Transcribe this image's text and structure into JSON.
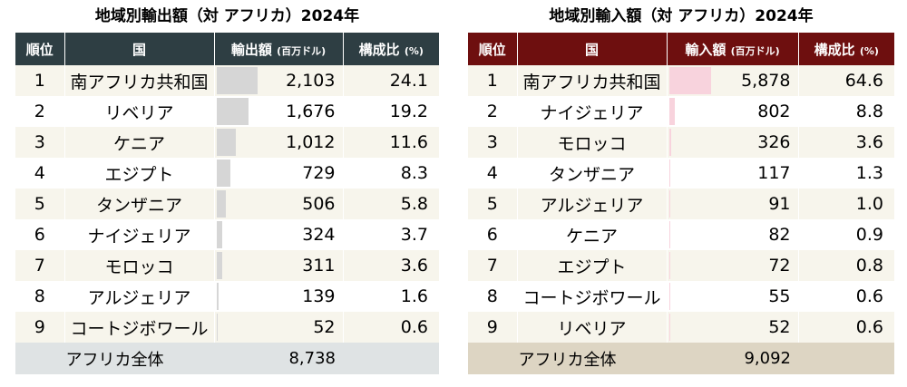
{
  "export": {
    "title": "地域別輸出額（対 アフリカ）2024年",
    "headers": {
      "rank": "順位",
      "country": "国",
      "value": "輸出額",
      "value_unit": "(百万ドル)",
      "share": "構成比",
      "share_unit": "(%)"
    },
    "rows": [
      {
        "rank": "1",
        "country": "南アフリカ共和国",
        "value": "2,103",
        "share": "24.1"
      },
      {
        "rank": "2",
        "country": "リベリア",
        "value": "1,676",
        "share": "19.2"
      },
      {
        "rank": "3",
        "country": "ケニア",
        "value": "1,012",
        "share": "11.6"
      },
      {
        "rank": "4",
        "country": "エジプト",
        "value": "729",
        "share": "8.3"
      },
      {
        "rank": "5",
        "country": "タンザニア",
        "value": "506",
        "share": "5.8"
      },
      {
        "rank": "6",
        "country": "ナイジェリア",
        "value": "324",
        "share": "3.7"
      },
      {
        "rank": "7",
        "country": "モロッコ",
        "value": "311",
        "share": "3.6"
      },
      {
        "rank": "8",
        "country": "アルジェリア",
        "value": "139",
        "share": "1.6"
      },
      {
        "rank": "9",
        "country": "コートジボワール",
        "value": "52",
        "share": "0.6"
      }
    ],
    "total": {
      "label": "アフリカ全体",
      "value": "8,738"
    },
    "bar_color": "#d6d6d6",
    "header_color": "#2e3e43"
  },
  "import": {
    "title": "地域別輸入額（対 アフリカ）2024年",
    "headers": {
      "rank": "順位",
      "country": "国",
      "value": "輸入額",
      "value_unit": "(百万ドル)",
      "share": "構成比",
      "share_unit": "(%)"
    },
    "rows": [
      {
        "rank": "1",
        "country": "南アフリカ共和国",
        "value": "5,878",
        "share": "64.6"
      },
      {
        "rank": "2",
        "country": "ナイジェリア",
        "value": "802",
        "share": "8.8"
      },
      {
        "rank": "3",
        "country": "モロッコ",
        "value": "326",
        "share": "3.6"
      },
      {
        "rank": "4",
        "country": "タンザニア",
        "value": "117",
        "share": "1.3"
      },
      {
        "rank": "5",
        "country": "アルジェリア",
        "value": "91",
        "share": "1.0"
      },
      {
        "rank": "6",
        "country": "ケニア",
        "value": "82",
        "share": "0.9"
      },
      {
        "rank": "7",
        "country": "エジプト",
        "value": "72",
        "share": "0.8"
      },
      {
        "rank": "8",
        "country": "コートジボワール",
        "value": "55",
        "share": "0.6"
      },
      {
        "rank": "9",
        "country": "リベリア",
        "value": "52",
        "share": "0.6"
      }
    ],
    "total": {
      "label": "アフリカ全体",
      "value": "9,092"
    },
    "bar_color": "#f8d3dd",
    "header_color": "#6e0f0f"
  }
}
